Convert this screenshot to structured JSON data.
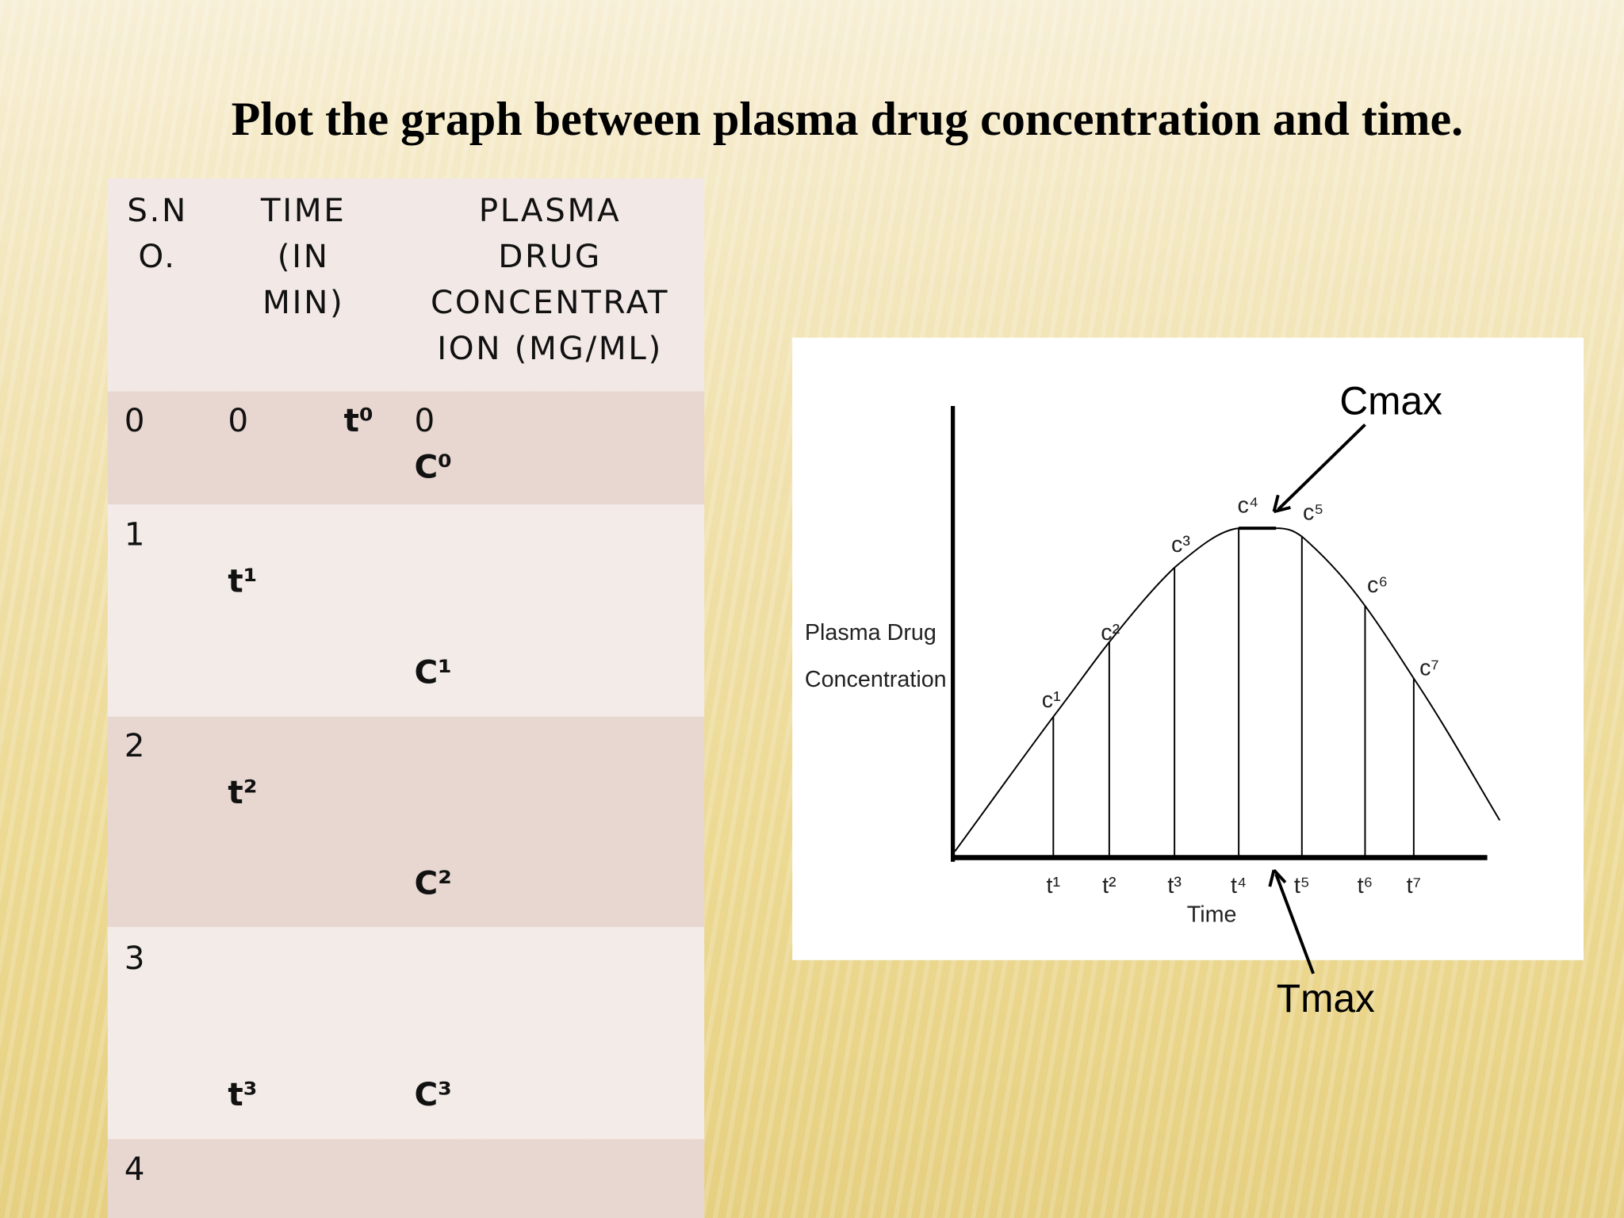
{
  "title": "Plot the graph between plasma drug concentration and time.",
  "table": {
    "header": [
      [
        "S.N",
        "O."
      ],
      [
        "TIME",
        "(IN",
        "MIN)"
      ],
      [
        "PLASMA",
        "DRUG",
        "CONCENTRAT",
        "ION (MG/ML)"
      ]
    ],
    "rows": [
      {
        "sno": "0",
        "time": "0",
        "time_symbol": "t⁰",
        "conc": "0",
        "conc_symbol": "C⁰"
      },
      {
        "sno": "1",
        "time_symbol": "t¹",
        "conc_symbol": "C¹"
      },
      {
        "sno": "2",
        "time_symbol": "t²",
        "conc_symbol": "C²"
      },
      {
        "sno": "3",
        "time_symbol": "t³",
        "conc_symbol": "C³"
      },
      {
        "sno": "4"
      }
    ]
  },
  "figure": {
    "y_label": [
      "Plasma Drug",
      "Concentration"
    ],
    "x_label": "Time",
    "time_labels": [
      "t¹",
      "t²",
      "t³",
      "t⁴",
      "t⁵",
      "t⁶",
      "t⁷"
    ],
    "conc_labels": [
      "c¹",
      "c²",
      "c³",
      "c⁴",
      "c⁵",
      "c⁶",
      "c⁷"
    ],
    "cmax": "Cmax",
    "tmax": "Tmax"
  }
}
